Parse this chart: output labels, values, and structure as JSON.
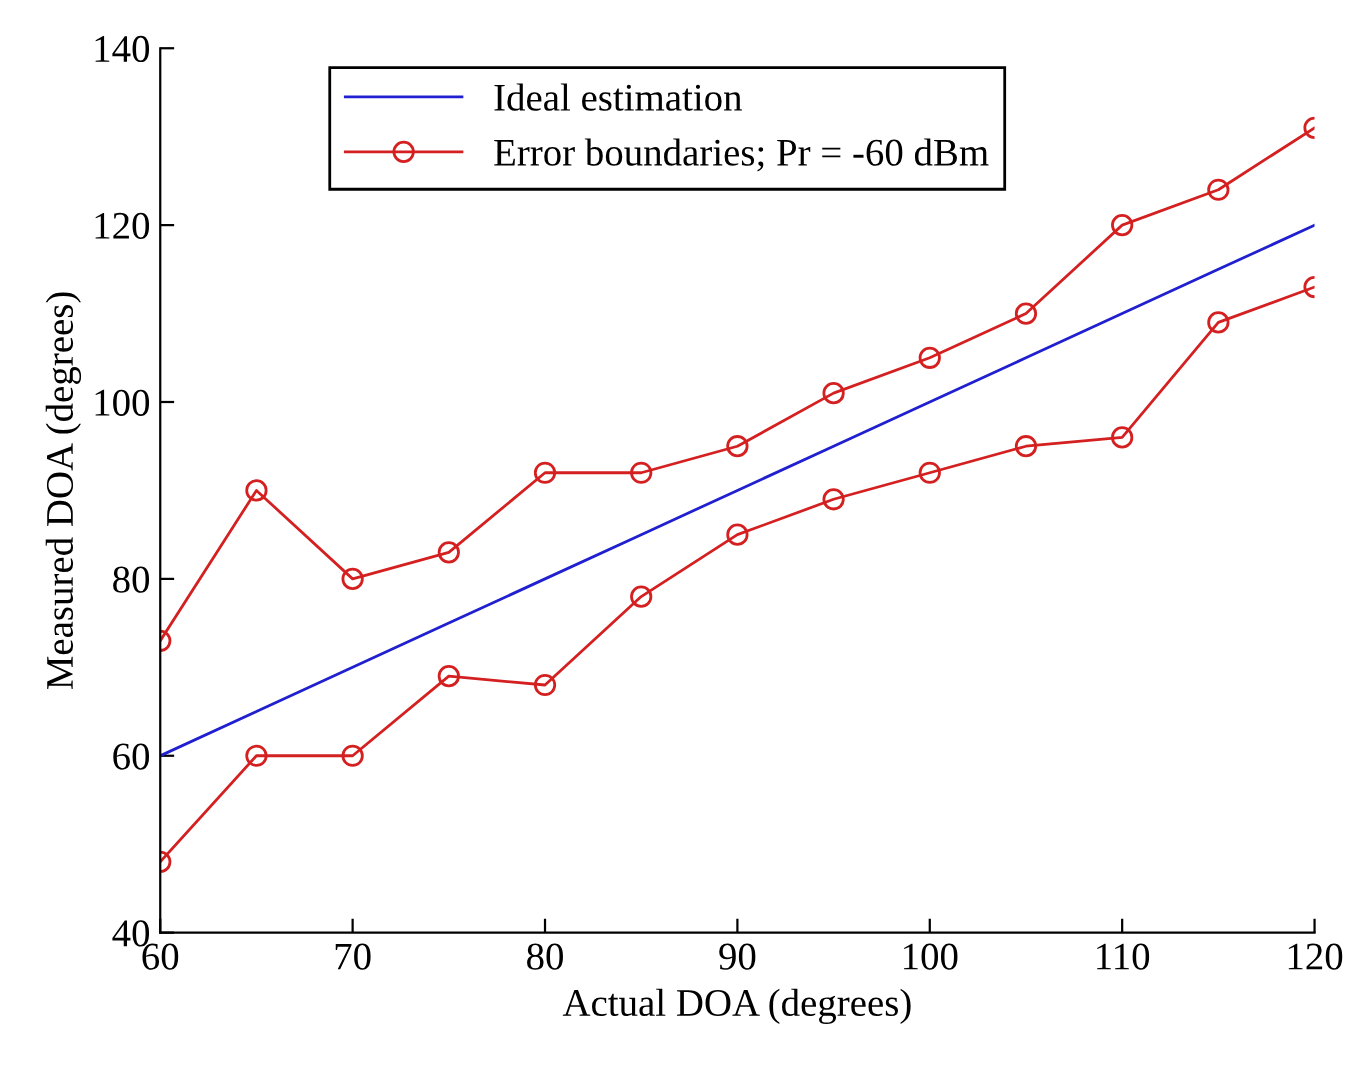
{
  "chart_data": {
    "type": "line",
    "xlabel": "Actual DOA (degrees)",
    "ylabel": "Measured DOA (degrees)",
    "x": [
      60,
      65,
      70,
      75,
      80,
      85,
      90,
      95,
      100,
      105,
      110,
      115,
      120
    ],
    "series": [
      {
        "name": "Ideal estimation",
        "color": "#2020d0",
        "marker": "none",
        "values": [
          60,
          65,
          70,
          75,
          80,
          85,
          90,
          95,
          100,
          105,
          110,
          115,
          120
        ]
      },
      {
        "name": "Error boundaries; Pr = -60 dBm",
        "color": "#d42020",
        "marker": "circle",
        "values": [
          73,
          90,
          80,
          83,
          92,
          92,
          95,
          101,
          105,
          110,
          120,
          124,
          131
        ]
      },
      {
        "color": "#d42020",
        "marker": "circle",
        "values": [
          48,
          60,
          60,
          69,
          68,
          78,
          85,
          89,
          92,
          95,
          96,
          109,
          113
        ]
      }
    ],
    "xlim": [
      60,
      120
    ],
    "xticks": [
      60,
      70,
      80,
      90,
      100,
      110,
      120
    ],
    "ylim": [
      40,
      140
    ],
    "yticks": [
      40,
      60,
      80,
      100,
      120,
      140
    ],
    "grid": false,
    "legend": "top left",
    "line_style": "solid"
  }
}
